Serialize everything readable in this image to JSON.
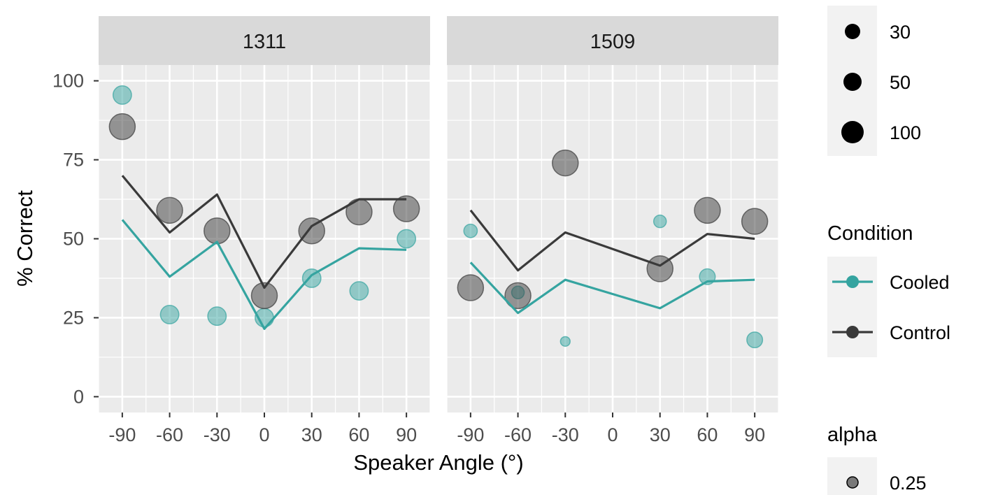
{
  "chart_data": {
    "type": "scatter",
    "xlabel": "Speaker Angle (°)",
    "ylabel": "% Correct",
    "x_ticks": [
      -90,
      -60,
      -30,
      0,
      30,
      60,
      90
    ],
    "y_ticks": [
      0,
      25,
      50,
      75,
      100
    ],
    "xlim": [
      -105,
      105
    ],
    "ylim": [
      -5,
      105
    ],
    "colors": {
      "Cooled": "#35a4a0",
      "Control": "#3a3a3a",
      "panel_bg": "#ebebeb",
      "strip_bg": "#d9d9d9",
      "legend_bg": "#f2f2f2"
    },
    "panels": [
      {
        "label": "1311",
        "series": [
          {
            "name": "Cooled",
            "line": [
              [
                -90,
                56
              ],
              [
                -60,
                38
              ],
              [
                -30,
                49
              ],
              [
                0,
                21.5
              ],
              [
                30,
                38.5
              ],
              [
                60,
                47
              ],
              [
                90,
                46.5
              ]
            ],
            "points": [
              {
                "x": -90,
                "y": 95.5,
                "n": 40
              },
              {
                "x": -60,
                "y": 26,
                "n": 40
              },
              {
                "x": -30,
                "y": 25.5,
                "n": 40
              },
              {
                "x": 0,
                "y": 25,
                "n": 40
              },
              {
                "x": 30,
                "y": 37.5,
                "n": 40
              },
              {
                "x": 60,
                "y": 33.5,
                "n": 40
              },
              {
                "x": 90,
                "y": 50,
                "n": 40
              }
            ]
          },
          {
            "name": "Control",
            "line": [
              [
                -90,
                70
              ],
              [
                -60,
                52
              ],
              [
                -30,
                64
              ],
              [
                0,
                34.5
              ],
              [
                30,
                54
              ],
              [
                60,
                62.5
              ],
              [
                90,
                62.5
              ]
            ],
            "points": [
              {
                "x": -90,
                "y": 85.5,
                "n": 100
              },
              {
                "x": -60,
                "y": 59,
                "n": 100
              },
              {
                "x": -30,
                "y": 52.5,
                "n": 100
              },
              {
                "x": 0,
                "y": 32,
                "n": 100
              },
              {
                "x": 30,
                "y": 52.5,
                "n": 100
              },
              {
                "x": 60,
                "y": 58.5,
                "n": 100
              },
              {
                "x": 90,
                "y": 59.5,
                "n": 100
              }
            ]
          }
        ]
      },
      {
        "label": "1509",
        "series": [
          {
            "name": "Cooled",
            "line": [
              [
                -90,
                42.5
              ],
              [
                -60,
                26.5
              ],
              [
                -30,
                37
              ],
              [
                30,
                28
              ],
              [
                60,
                36.5
              ],
              [
                90,
                37
              ]
            ],
            "points": [
              {
                "x": -90,
                "y": 52.5,
                "n": 15
              },
              {
                "x": -60,
                "y": 33,
                "n": 12
              },
              {
                "x": -30,
                "y": 17.5,
                "n": 4
              },
              {
                "x": 30,
                "y": 55.5,
                "n": 12
              },
              {
                "x": 60,
                "y": 38,
                "n": 25
              },
              {
                "x": 90,
                "y": 18,
                "n": 25
              }
            ]
          },
          {
            "name": "Control",
            "line": [
              [
                -90,
                59
              ],
              [
                -60,
                40
              ],
              [
                -30,
                52
              ],
              [
                30,
                41.5
              ],
              [
                60,
                51.5
              ],
              [
                90,
                50
              ]
            ],
            "points": [
              {
                "x": -90,
                "y": 34.5,
                "n": 100
              },
              {
                "x": -60,
                "y": 32,
                "n": 100
              },
              {
                "x": -30,
                "y": 74,
                "n": 100
              },
              {
                "x": 30,
                "y": 40.5,
                "n": 100
              },
              {
                "x": 60,
                "y": 59,
                "n": 100
              },
              {
                "x": 90,
                "y": 55.5,
                "n": 100
              }
            ]
          }
        ]
      }
    ],
    "legend": {
      "size": {
        "title": "",
        "entries": [
          "30",
          "50",
          "100"
        ],
        "values": [
          30,
          50,
          100
        ]
      },
      "condition": {
        "title": "Condition",
        "entries": [
          "Cooled",
          "Control"
        ]
      },
      "alpha": {
        "title": "alpha",
        "entries": [
          "0.25"
        ]
      }
    }
  }
}
